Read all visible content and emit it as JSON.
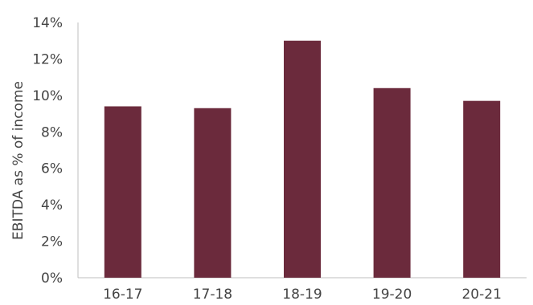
{
  "chart_data": {
    "type": "bar",
    "title": "",
    "xlabel": "",
    "ylabel": "EBITDA as % of income",
    "categories": [
      "16-17",
      "17-18",
      "18-19",
      "19-20",
      "20-21"
    ],
    "values": [
      9.4,
      9.3,
      13.0,
      10.4,
      9.7
    ],
    "ylim": [
      0,
      14
    ],
    "yticks": [
      "0%",
      "2%",
      "4%",
      "6%",
      "8%",
      "10%",
      "12%",
      "14%"
    ],
    "grid": false,
    "bar_color": "#6b2a3c",
    "axis_color": "#bfbfbf"
  }
}
